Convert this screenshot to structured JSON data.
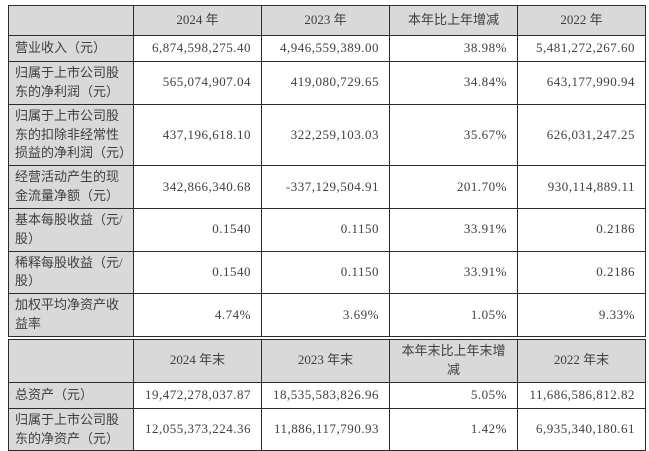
{
  "colors": {
    "header_bg": "#d9d9d9",
    "cell_bg": "#ffffff",
    "border": "#2b2b2b",
    "text": "#3f3f3f"
  },
  "period_table": {
    "corner": "",
    "headers": [
      "2024 年",
      "2023 年",
      "本年比上年增减",
      "2022 年"
    ],
    "rows": [
      {
        "label": "营业收入（元）",
        "values": [
          "6,874,598,275.40",
          "4,946,559,389.00",
          "38.98%",
          "5,481,272,267.60"
        ]
      },
      {
        "label": "归属于上市公司股东的净利润（元）",
        "values": [
          "565,074,907.04",
          "419,080,729.65",
          "34.84%",
          "643,177,990.94"
        ]
      },
      {
        "label": "归属于上市公司股东的扣除非经常性损益的净利润（元）",
        "values": [
          "437,196,618.10",
          "322,259,103.03",
          "35.67%",
          "626,031,247.25"
        ]
      },
      {
        "label": "经营活动产生的现金流量净额（元）",
        "values": [
          "342,866,340.68",
          "-337,129,504.91",
          "201.70%",
          "930,114,889.11"
        ]
      },
      {
        "label": "基本每股收益（元/股）",
        "values": [
          "0.1540",
          "0.1150",
          "33.91%",
          "0.2186"
        ]
      },
      {
        "label": "稀释每股收益（元/股）",
        "values": [
          "0.1540",
          "0.1150",
          "33.91%",
          "0.2186"
        ]
      },
      {
        "label": "加权平均净资产收益率",
        "values": [
          "4.74%",
          "3.69%",
          "1.05%",
          "9.33%"
        ]
      }
    ]
  },
  "yearend_table": {
    "corner": "",
    "headers": [
      "2024 年末",
      "2023 年末",
      "本年末比上年末增减",
      "2022 年末"
    ],
    "rows": [
      {
        "label": "总资产（元）",
        "values": [
          "19,472,278,037.87",
          "18,535,583,826.96",
          "5.05%",
          "11,686,586,812.82"
        ]
      },
      {
        "label": "归属于上市公司股东的净资产（元）",
        "values": [
          "12,055,373,224.36",
          "11,886,117,790.93",
          "1.42%",
          "6,935,340,180.61"
        ]
      }
    ]
  }
}
